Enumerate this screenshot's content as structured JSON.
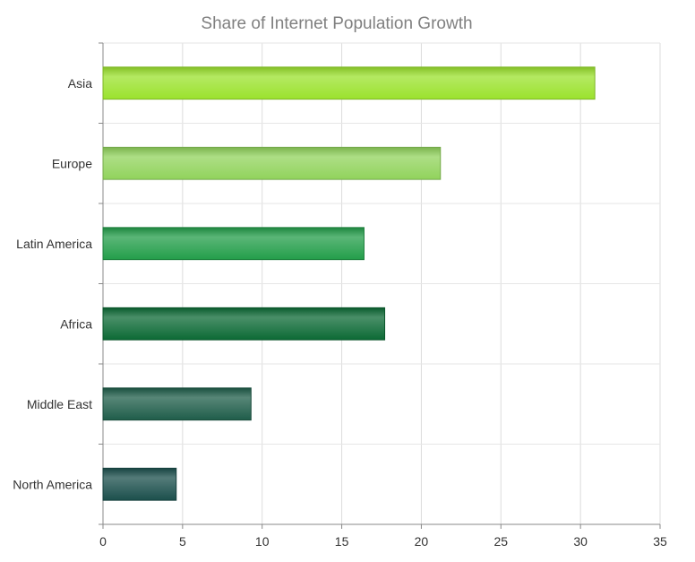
{
  "chart_data": {
    "type": "bar",
    "orientation": "horizontal",
    "title": "Share of Internet Population Growth",
    "xlabel": "",
    "ylabel": "",
    "categories": [
      "Asia",
      "Europe",
      "Latin America",
      "Africa",
      "Middle East",
      "North America"
    ],
    "values": [
      30.9,
      21.2,
      16.4,
      17.7,
      9.3,
      4.6
    ],
    "bar_colors": [
      "#9be22d",
      "#91d35c",
      "#239e4a",
      "#0c6a35",
      "#1f5d4a",
      "#1b4f4c"
    ],
    "xlim": [
      0,
      35
    ],
    "x_ticks": [
      0,
      5,
      10,
      15,
      20,
      25,
      30,
      35
    ],
    "grid": true,
    "legend": "none"
  }
}
